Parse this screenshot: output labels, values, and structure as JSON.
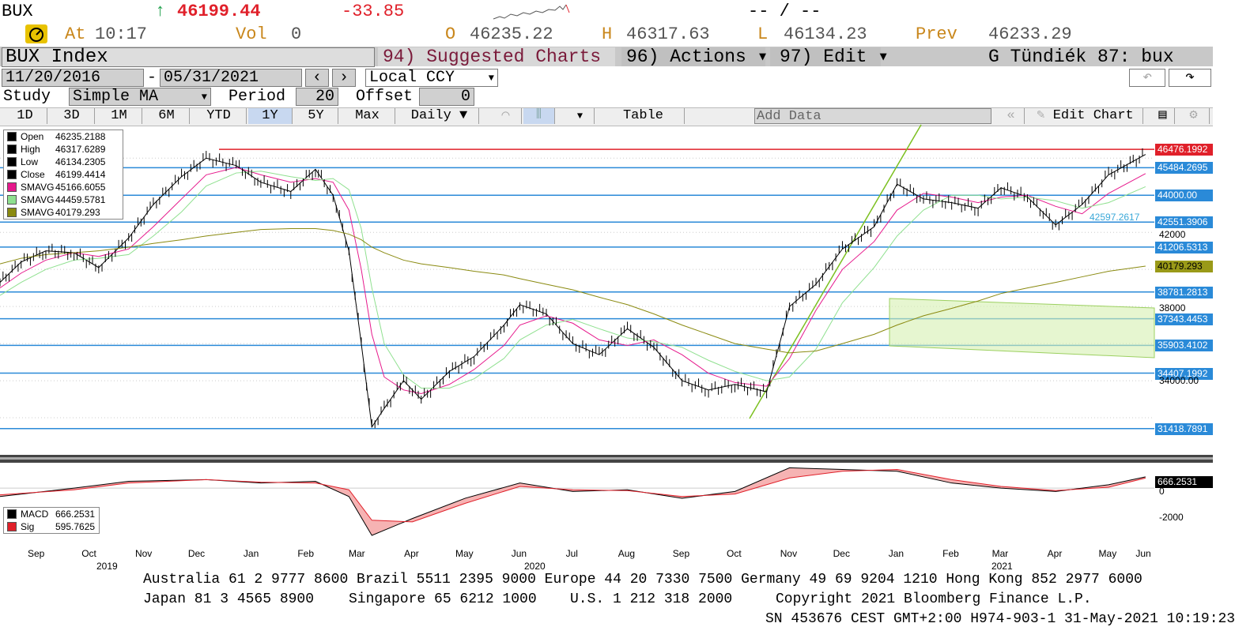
{
  "quote": {
    "ticker": "BUX",
    "arrow": "↑",
    "last": "46199.44",
    "change": "-33.85",
    "range_text": "-- / --",
    "at_label": "At",
    "time": "10:17",
    "vol_label": "Vol",
    "vol": "0",
    "open_label": "O",
    "open": "46235.22",
    "high_label": "H",
    "high": "46317.63",
    "low_label": "L",
    "low": "46134.23",
    "prev_label": "Prev",
    "prev": "46233.29"
  },
  "titlebar": {
    "security": "BUX Index",
    "suggested": "94) Suggested Charts",
    "actions": "96) Actions ▾",
    "edit": "97) Edit ▾",
    "title": "G Tündiék 87: bux"
  },
  "dates": {
    "start": "11/20/2016",
    "sep": "-",
    "end": "05/31/2021",
    "currency": "Local CCY"
  },
  "study": {
    "label": "Study",
    "value": "Simple MA",
    "period_label": "Period",
    "period": "20",
    "offset_label": "Offset",
    "offset": "0"
  },
  "tabs": {
    "ranges": [
      "1D",
      "3D",
      "1M",
      "6M",
      "YTD",
      "1Y",
      "5Y",
      "Max"
    ],
    "selected": "1Y",
    "frequency": "Daily ▼",
    "table": "Table",
    "add_data": "Add Data",
    "edit_chart": "Edit Chart"
  },
  "legend": [
    {
      "label": "Open",
      "value": "46235.2188",
      "color": "#000000"
    },
    {
      "label": "High",
      "value": "46317.6289",
      "color": "#000000"
    },
    {
      "label": "Low",
      "value": "46134.2305",
      "color": "#000000"
    },
    {
      "label": "Close",
      "value": "46199.4414",
      "color": "#000000"
    },
    {
      "label": "SMAVG",
      "value": "45166.6055",
      "color": "#e6198c"
    },
    {
      "label": "SMAVG",
      "value": "44459.5781",
      "color": "#8fe08f"
    },
    {
      "label": "SMAVG",
      "value": "40179.293",
      "color": "#8a8a10"
    }
  ],
  "macd_legend": [
    {
      "label": "MACD",
      "value": "666.2531",
      "color": "#000000"
    },
    {
      "label": "Sig",
      "value": "595.7625",
      "color": "#e0202a"
    }
  ],
  "price_tags": [
    {
      "value": "46476.1992",
      "y": 46476,
      "bg": "#e0202a",
      "fg": "#ffffff"
    },
    {
      "value": "45484.2695",
      "y": 45484,
      "bg": "#2a8ad8",
      "fg": "#ffffff"
    },
    {
      "value": "44000.00",
      "y": 44000,
      "bg": "#2a8ad8",
      "fg": "#ffffff"
    },
    {
      "value": "42551.3906",
      "y": 42551,
      "bg": "#2a8ad8",
      "fg": "#ffffff"
    },
    {
      "value": "41206.5313",
      "y": 41206,
      "bg": "#2a8ad8",
      "fg": "#ffffff"
    },
    {
      "value": "40179.293",
      "y": 40179,
      "bg": "#9a9a18",
      "fg": "#000000"
    },
    {
      "value": "38781.2813",
      "y": 38781,
      "bg": "#2a8ad8",
      "fg": "#ffffff"
    },
    {
      "value": "37343.4453",
      "y": 37343,
      "bg": "#2a8ad8",
      "fg": "#ffffff"
    },
    {
      "value": "35903.4102",
      "y": 35903,
      "bg": "#2a8ad8",
      "fg": "#ffffff"
    },
    {
      "value": "34407.1992",
      "y": 34407,
      "bg": "#2a8ad8",
      "fg": "#ffffff"
    },
    {
      "value": "31418.7891",
      "y": 31418,
      "bg": "#2a8ad8",
      "fg": "#ffffff"
    }
  ],
  "axis_labels": [
    "42000",
    "38000",
    "34000.00"
  ],
  "channel_label": "42597.2617",
  "macd_tag": "666.2531",
  "macd_axis": [
    "0",
    "-2000"
  ],
  "x_axis": {
    "months": [
      "Sep",
      "Oct",
      "Nov",
      "Dec",
      "Jan",
      "Feb",
      "Mar",
      "Apr",
      "May",
      "Jun",
      "Jul",
      "Aug",
      "Sep",
      "Oct",
      "Nov",
      "Dec",
      "Jan",
      "Feb",
      "Mar",
      "Apr",
      "May",
      "Jun"
    ],
    "years": [
      "2019",
      "2020",
      "2021"
    ]
  },
  "footer": {
    "line1": "Australia 61 2 9777 8600 Brazil 5511 2395 9000 Europe 44 20 7330 7500 Germany 49 69 9204 1210 Hong Kong 852 2977 6000",
    "line2a": "Japan 81 3 4565 8900",
    "line2b": "Singapore 65 6212 1000",
    "line2c": "U.S. 1 212 318 2000",
    "line2d": "Copyright 2021 Bloomberg Finance L.P.",
    "line3": "SN 453676 CEST GMT+2:00 H974-903-1 31-May-2021 10:19:23"
  },
  "chart_data": {
    "type": "line",
    "title": "BUX Index",
    "x": [
      "2019-08-20",
      "2019-09-01",
      "2019-09-15",
      "2019-10-01",
      "2019-10-15",
      "2019-11-01",
      "2019-11-15",
      "2019-12-01",
      "2019-12-15",
      "2020-01-01",
      "2020-01-15",
      "2020-02-01",
      "2020-02-15",
      "2020-02-25",
      "2020-03-05",
      "2020-03-12",
      "2020-03-18",
      "2020-03-25",
      "2020-04-05",
      "2020-04-15",
      "2020-05-01",
      "2020-05-15",
      "2020-06-01",
      "2020-06-10",
      "2020-06-25",
      "2020-07-10",
      "2020-07-25",
      "2020-08-10",
      "2020-08-25",
      "2020-09-10",
      "2020-09-25",
      "2020-10-10",
      "2020-10-28",
      "2020-11-10",
      "2020-11-25",
      "2020-12-10",
      "2020-12-28",
      "2021-01-10",
      "2021-01-25",
      "2021-02-10",
      "2021-02-25",
      "2021-03-10",
      "2021-03-25",
      "2021-04-10",
      "2021-04-25",
      "2021-05-10",
      "2021-05-31"
    ],
    "series": [
      {
        "name": "Close",
        "values": [
          39300,
          40400,
          41000,
          40900,
          40100,
          41700,
          43500,
          45000,
          46000,
          45600,
          44700,
          44200,
          45400,
          44000,
          41000,
          36000,
          31500,
          32500,
          34000,
          33000,
          34500,
          35300,
          37000,
          38100,
          37600,
          36000,
          35400,
          36800,
          35800,
          34000,
          33500,
          33800,
          33400,
          38000,
          39200,
          41100,
          42300,
          44600,
          43800,
          43600,
          43300,
          44400,
          43900,
          42400,
          43500,
          45100,
          46199
        ]
      },
      {
        "name": "SMAVG",
        "values": [
          39000,
          39800,
          40500,
          40900,
          40700,
          41100,
          42300,
          43800,
          45100,
          45500,
          45100,
          44700,
          44900,
          44700,
          43200,
          40000,
          36500,
          34200,
          33500,
          33300,
          33800,
          34600,
          35900,
          37000,
          37500,
          37100,
          36200,
          35900,
          36200,
          35400,
          34400,
          33900,
          33700,
          35200,
          37800,
          40000,
          41500,
          43200,
          44100,
          43900,
          43600,
          43900,
          44000,
          43400,
          43000,
          44100,
          45166
        ]
      },
      {
        "name": "SMAVG",
        "values": [
          38600,
          39300,
          40000,
          40500,
          40600,
          40800,
          41800,
          43100,
          44500,
          45200,
          45300,
          45000,
          44800,
          44900,
          44300,
          42200,
          39000,
          36000,
          34300,
          33600,
          33600,
          34100,
          35200,
          36200,
          37000,
          37300,
          36800,
          36300,
          36100,
          35800,
          35100,
          34500,
          34000,
          34200,
          35700,
          38200,
          40100,
          41800,
          43200,
          44000,
          44000,
          43800,
          43900,
          43700,
          43300,
          43600,
          44459
        ]
      },
      {
        "name": "SMAVG",
        "values": [
          40300,
          40600,
          40800,
          40900,
          41000,
          41200,
          41400,
          41600,
          41800,
          42000,
          42150,
          42200,
          42200,
          42100,
          41900,
          41600,
          41200,
          40900,
          40500,
          40300,
          40100,
          39900,
          39700,
          39500,
          39200,
          38900,
          38500,
          38100,
          37600,
          37000,
          36500,
          36000,
          35700,
          35500,
          35600,
          36000,
          36500,
          37000,
          37500,
          37900,
          38300,
          38700,
          39000,
          39300,
          39600,
          39900,
          40179
        ]
      }
    ],
    "ylim": [
      30000,
      47800
    ],
    "ylabel": "",
    "macd": {
      "x": [
        "2019-08-20",
        "2019-10-01",
        "2019-11-01",
        "2019-12-15",
        "2020-01-15",
        "2020-02-15",
        "2020-03-05",
        "2020-03-18",
        "2020-04-10",
        "2020-05-10",
        "2020-06-10",
        "2020-07-10",
        "2020-08-10",
        "2020-09-10",
        "2020-10-10",
        "2020-11-10",
        "2020-12-10",
        "2021-01-10",
        "2021-02-10",
        "2021-03-10",
        "2021-04-10",
        "2021-05-10",
        "2021-05-31"
      ],
      "macd": [
        -500,
        0,
        400,
        500,
        300,
        400,
        -500,
        -2800,
        -1800,
        -600,
        300,
        -200,
        -100,
        -600,
        -200,
        1200,
        1100,
        1000,
        300,
        0,
        -200,
        200,
        666
      ],
      "signal": [
        -400,
        -100,
        300,
        500,
        350,
        300,
        -100,
        -1900,
        -2000,
        -900,
        100,
        -100,
        -150,
        -500,
        -350,
        600,
        1000,
        1100,
        500,
        100,
        -150,
        50,
        596
      ],
      "ylim": [
        -3500,
        1500
      ]
    },
    "grid": true,
    "legend": "top-left"
  }
}
